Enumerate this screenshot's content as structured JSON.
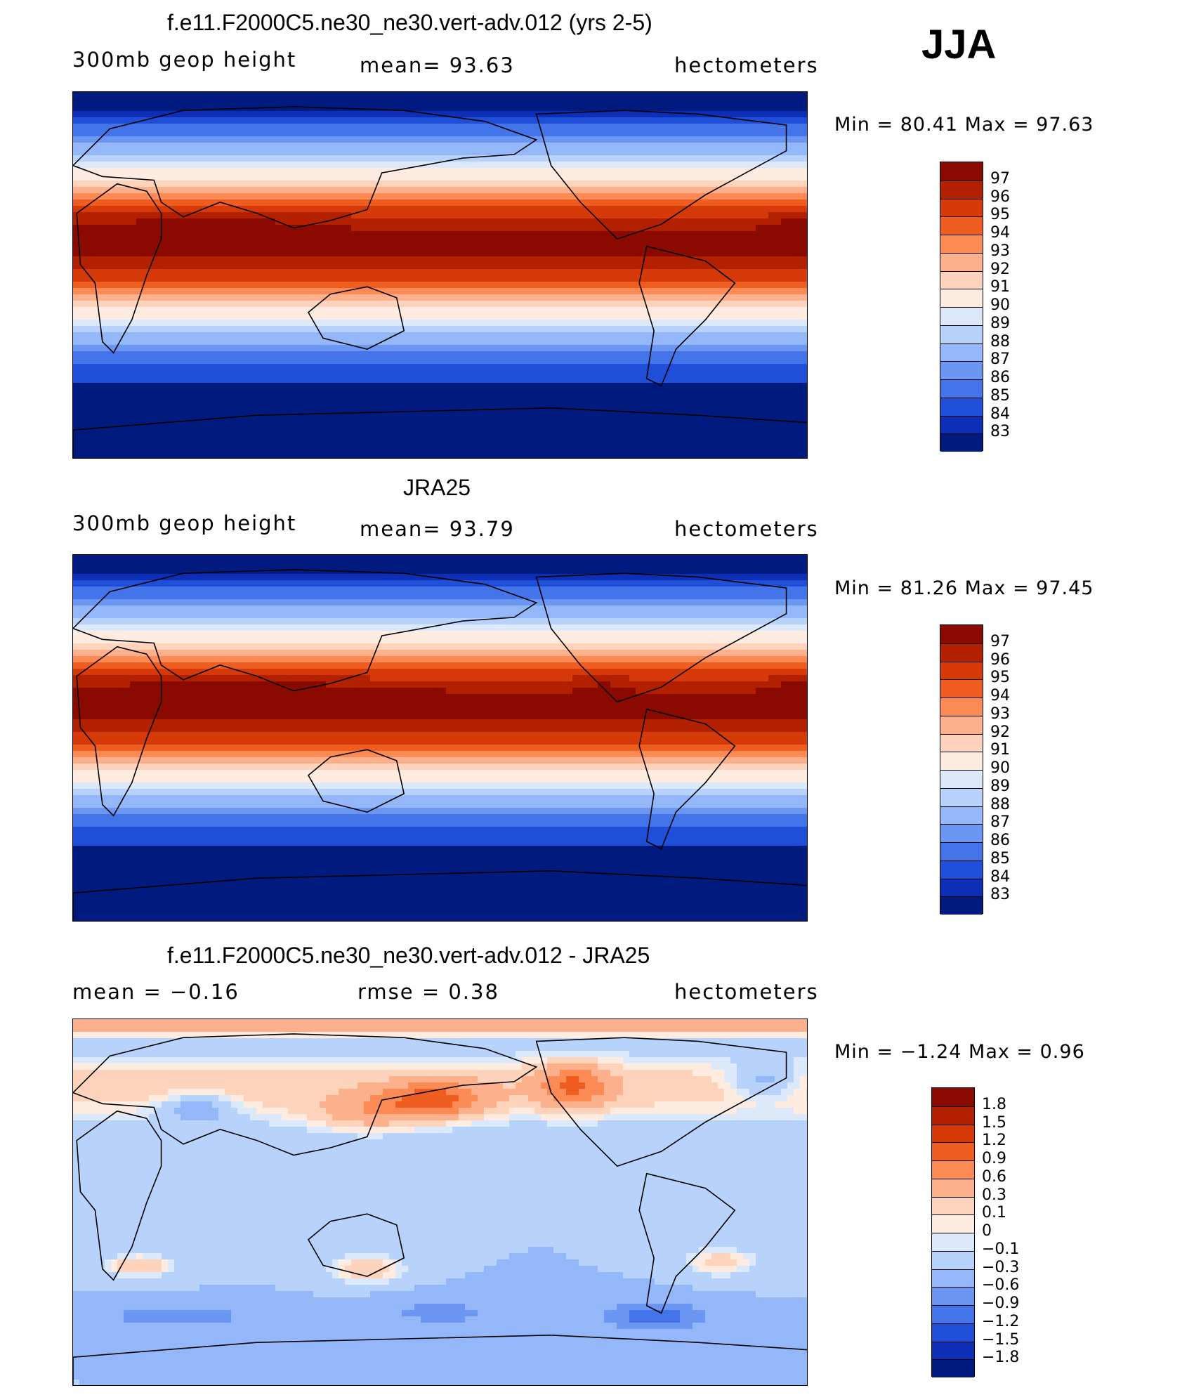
{
  "season": "JJA",
  "panels": [
    {
      "id": "model",
      "title": "f.e11.F2000C5.ne30_ne30.vert-adv.012 (yrs 2-5)",
      "left": "300mb  geop  height",
      "center": "mean=   93.63",
      "right": "hectometers",
      "minmax": "Min  =    80.41  Max  =    97.63",
      "levels": [
        "97",
        "96",
        "95",
        "94",
        "93",
        "92",
        "91",
        "90",
        "89",
        "88",
        "87",
        "86",
        "85",
        "84",
        "83"
      ],
      "colors": [
        "#8b0a00",
        "#b32000",
        "#d63a08",
        "#f05d20",
        "#fb8a55",
        "#fdb08c",
        "#fdd3bb",
        "#fdecdf",
        "#dbe9fb",
        "#b8d3fb",
        "#93b7f8",
        "#6b97f2",
        "#4474ea",
        "#1f4fd8",
        "#0d2fb8",
        "#001a80"
      ]
    },
    {
      "id": "obs",
      "title": "JRA25",
      "left": "300mb  geop  height",
      "center": "mean=   93.79",
      "right": "hectometers",
      "minmax": "Min  =    81.26  Max  =    97.45",
      "levels": [
        "97",
        "96",
        "95",
        "94",
        "93",
        "92",
        "91",
        "90",
        "89",
        "88",
        "87",
        "86",
        "85",
        "84",
        "83"
      ],
      "colors": [
        "#8b0a00",
        "#b32000",
        "#d63a08",
        "#f05d20",
        "#fb8a55",
        "#fdb08c",
        "#fdd3bb",
        "#fdecdf",
        "#dbe9fb",
        "#b8d3fb",
        "#93b7f8",
        "#6b97f2",
        "#4474ea",
        "#1f4fd8",
        "#0d2fb8",
        "#001a80"
      ]
    },
    {
      "id": "diff",
      "title": "f.e11.F2000C5.ne30_ne30.vert-adv.012 - JRA25",
      "left": "mean  =    −0.16",
      "center": "rmse  =     0.38",
      "right": "hectometers",
      "minmax": "Min  =   −1.24  Max  =     0.96",
      "levels": [
        "1.8",
        "1.5",
        "1.2",
        "0.9",
        "0.6",
        "0.3",
        "0.1",
        "0",
        "−0.1",
        "−0.3",
        "−0.6",
        "−0.9",
        "−1.2",
        "−1.5",
        "−1.8"
      ],
      "colors": [
        "#8b0a00",
        "#b32000",
        "#d63a08",
        "#f05d20",
        "#fb8a55",
        "#fdb08c",
        "#fdd3bb",
        "#fdecdf",
        "#dbe9fb",
        "#b8d3fb",
        "#93b7f8",
        "#6b97f2",
        "#4474ea",
        "#1f4fd8",
        "#0d2fb8",
        "#001a80"
      ]
    }
  ]
}
